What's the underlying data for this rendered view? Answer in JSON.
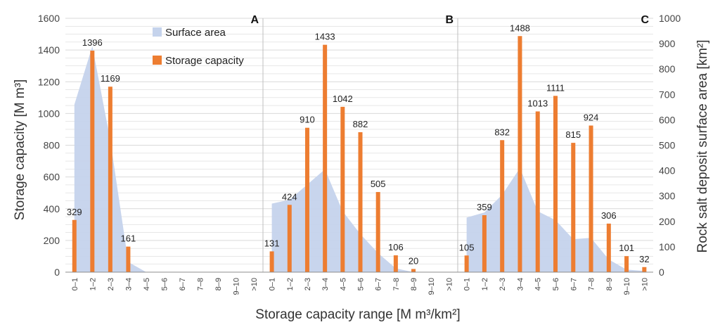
{
  "chart_data": {
    "type": "bar",
    "ylabel_left": "Storage capacity [M m³]",
    "ylabel_right": "Rock salt deposit surface area [km²]",
    "xlabel": "Storage capacity range [M m³/km²]",
    "ylim_left": [
      0,
      1600
    ],
    "yticks_left": [
      "0",
      "200",
      "400",
      "600",
      "800",
      "1000",
      "1200",
      "1400",
      "1600"
    ],
    "ylim_right": [
      0,
      1000
    ],
    "yticks_right": [
      "0",
      "100",
      "200",
      "300",
      "400",
      "500",
      "600",
      "700",
      "800",
      "900",
      "1000"
    ],
    "categories": [
      "0–1",
      "1–2",
      "2–3",
      "3–4",
      "4–5",
      "5–6",
      "6–7",
      "7–8",
      "8–9",
      "9–10",
      ">10"
    ],
    "legend": {
      "area": "Surface area",
      "bar": "Storage capacity"
    },
    "colors": {
      "area": "#c5d3ec",
      "bar": "#ed7d31",
      "grid": "#d9d9d9"
    },
    "panels": [
      {
        "name": "A",
        "storage_capacity": [
          329,
          1396,
          1169,
          161,
          0,
          0,
          0,
          0,
          0,
          0,
          0
        ],
        "labels": [
          "329",
          "1396",
          "1169",
          "161",
          "",
          "",
          "",
          "",
          "",
          "",
          ""
        ],
        "surface_area": [
          660,
          890,
          520,
          40,
          0,
          0,
          0,
          0,
          0,
          0,
          0
        ]
      },
      {
        "name": "B",
        "storage_capacity": [
          131,
          424,
          910,
          1433,
          1042,
          882,
          505,
          106,
          20,
          0,
          0
        ],
        "labels": [
          "131",
          "424",
          "910",
          "1433",
          "1042",
          "882",
          "505",
          "106",
          "20",
          "",
          ""
        ],
        "surface_area": [
          270,
          285,
          345,
          405,
          240,
          150,
          75,
          15,
          0,
          0,
          0
        ]
      },
      {
        "name": "C",
        "storage_capacity": [
          105,
          359,
          832,
          1488,
          1013,
          1111,
          815,
          924,
          306,
          101,
          32
        ],
        "labels": [
          "105",
          "359",
          "832",
          "1488",
          "1013",
          "1111",
          "815",
          "924",
          "306",
          "101",
          "32"
        ],
        "surface_area": [
          215,
          235,
          305,
          410,
          240,
          205,
          130,
          135,
          50,
          10,
          5
        ]
      }
    ]
  }
}
